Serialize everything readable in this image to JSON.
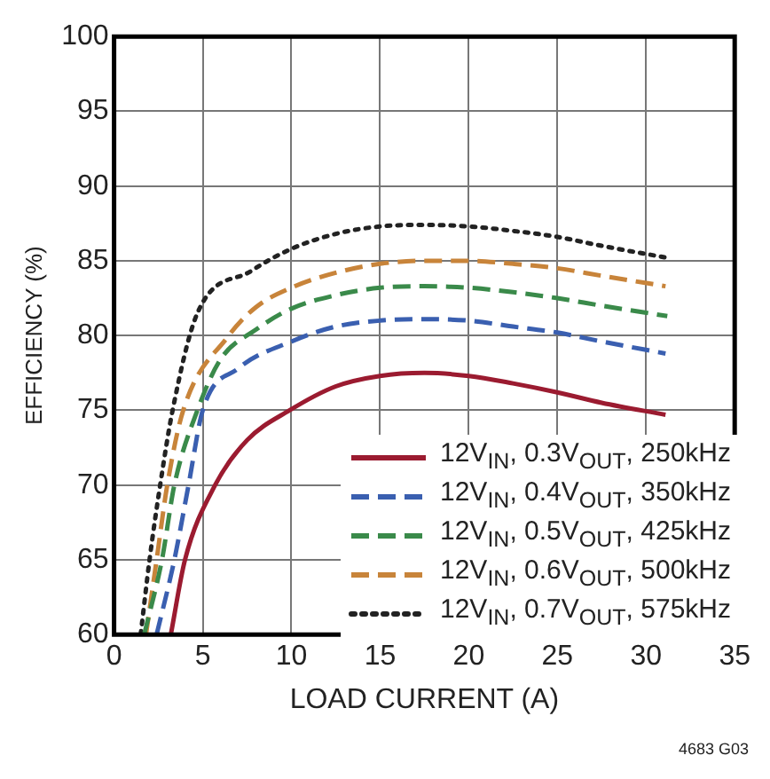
{
  "chart_data": {
    "type": "line",
    "xlabel": "LOAD CURRENT (A)",
    "ylabel": "EFFICIENCY (%)",
    "xlim": [
      0,
      35
    ],
    "xticks": [
      0,
      5,
      10,
      15,
      20,
      25,
      30,
      35
    ],
    "ylim": [
      60,
      100
    ],
    "yticks": [
      60,
      65,
      70,
      75,
      80,
      85,
      90,
      95,
      100
    ],
    "grid": true,
    "legend": "bottom right",
    "marker": "none",
    "annotations": [
      "4683 G03"
    ],
    "series": [
      {
        "name": "12V$_{IN}$, 0.3V$_{OUT}$, 250kHz",
        "color": "#9b1b30",
        "line_style": "solid",
        "x": [
          3.2,
          4,
          5.7,
          7.5,
          9.9,
          12.5,
          15,
          17.5,
          20,
          22.5,
          25,
          27.5,
          31.1
        ],
        "values": [
          60,
          65,
          70,
          73,
          75,
          76.6,
          77.3,
          77.5,
          77.3,
          76.8,
          76.2,
          75.5,
          74.7
        ]
      },
      {
        "name": "12V$_{IN}$, 0.4V$_{OUT}$, 350kHz",
        "color": "#3a5fb0",
        "line_style": "dashed",
        "x": [
          2.4,
          3.4,
          4.2,
          5,
          7,
          10,
          12.5,
          15,
          17.5,
          20,
          22.5,
          25,
          27.5,
          31.1
        ],
        "values": [
          60,
          65,
          70,
          75,
          77.8,
          79.6,
          80.6,
          81,
          81.1,
          81,
          80.6,
          80.2,
          79.6,
          78.8
        ]
      },
      {
        "name": "12V$_{IN}$, 0.5V$_{OUT}$, 425kHz",
        "color": "#3a8a4a",
        "line_style": "dashed",
        "x": [
          1.7,
          2.7,
          3.4,
          4.7,
          6,
          8,
          10,
          12.5,
          15,
          17.5,
          20,
          22.5,
          25,
          27.5,
          31.2
        ],
        "values": [
          60,
          65,
          70,
          75,
          78.4,
          80.4,
          81.8,
          82.7,
          83.2,
          83.3,
          83.2,
          82.9,
          82.5,
          82,
          81.3
        ]
      },
      {
        "name": "12V$_{IN}$, 0.6V$_{OUT}$, 500kHz",
        "color": "#c8843a",
        "line_style": "dashed",
        "x": [
          1.8,
          2.4,
          3,
          3.9,
          6.4,
          8,
          10,
          12.5,
          15,
          17.5,
          20,
          22.5,
          25,
          27.5,
          31.1
        ],
        "values": [
          60,
          65,
          70,
          75,
          79.9,
          81.9,
          83.2,
          84.2,
          84.8,
          85,
          85,
          84.8,
          84.5,
          84,
          83.3
        ]
      },
      {
        "name": "12V$_{IN}$, 0.7V$_{OUT}$, 575kHz",
        "color": "#222222",
        "line_style": "dotted",
        "x": [
          1.5,
          2,
          2.6,
          3.3,
          4.7,
          7.7,
          10,
          12.5,
          15,
          17.5,
          20,
          22.5,
          25,
          27.5,
          31.2
        ],
        "values": [
          60,
          65,
          70,
          75,
          81.5,
          84.3,
          85.8,
          86.8,
          87.3,
          87.4,
          87.3,
          87,
          86.6,
          86,
          85.2
        ]
      }
    ]
  }
}
